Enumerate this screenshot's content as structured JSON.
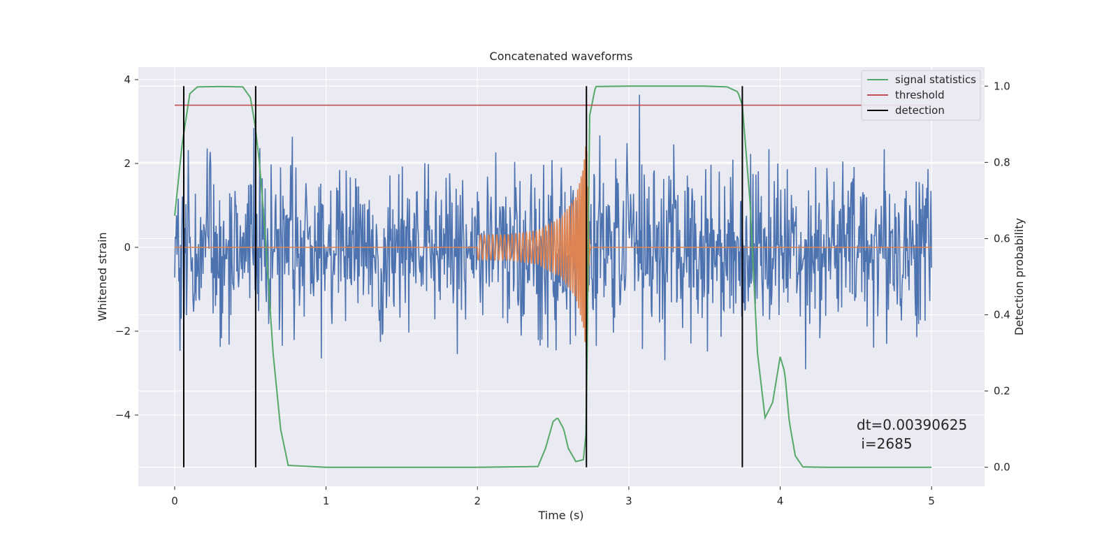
{
  "chart_data": {
    "type": "line",
    "title": "Concatenated waveforms",
    "xlabel": "Time (s)",
    "ylabel_left": "Whitened strain",
    "ylabel_right": "Detection probability",
    "xlim": [
      -0.24,
      5.35
    ],
    "ylim_left": [
      -5.7,
      4.3
    ],
    "ylim_right": [
      -0.05,
      1.05
    ],
    "x_ticks": [
      0,
      1,
      2,
      3,
      4,
      5
    ],
    "y_ticks_left": [
      4,
      2,
      0,
      -2,
      -4
    ],
    "y_ticks_right": [
      1.0,
      0.8,
      0.6,
      0.4,
      0.2,
      0.0
    ],
    "y_tick_labels_left": [
      "4",
      "2",
      "0",
      "−2",
      "−4"
    ],
    "y_tick_labels_right": [
      "1.0",
      "0.8",
      "0.6",
      "0.4",
      "0.2",
      "0.0"
    ],
    "grid": true,
    "legend_position": "top-right",
    "series": [
      {
        "name": "strain",
        "axis": "left",
        "kind": "noise",
        "x_range": [
          0,
          5
        ],
        "approx_amplitude": 1.1,
        "approx_envelope": [
          -3.5,
          3.8
        ],
        "color": "#4c72b0"
      },
      {
        "name": "injected signal",
        "axis": "left",
        "kind": "chirp",
        "x": [
          0,
          2.0,
          2.2,
          2.4,
          2.55,
          2.65,
          2.7,
          2.72,
          2.74,
          5.0
        ],
        "amplitude": [
          0,
          0.3,
          0.3,
          0.4,
          0.7,
          1.2,
          1.9,
          2.6,
          0.2,
          0
        ],
        "color": "#dd8452"
      },
      {
        "name": "signal statistics",
        "axis": "right",
        "x": [
          0,
          0.05,
          0.1,
          0.15,
          0.3,
          0.45,
          0.5,
          0.53,
          0.56,
          0.6,
          0.65,
          0.7,
          0.75,
          1.0,
          2.0,
          2.4,
          2.45,
          2.5,
          2.53,
          2.57,
          2.6,
          2.65,
          2.7,
          2.72,
          2.74,
          2.78,
          3.0,
          3.5,
          3.65,
          3.72,
          3.75,
          3.8,
          3.85,
          3.9,
          3.95,
          4.0,
          4.03,
          4.06,
          4.1,
          4.15,
          4.3,
          5.0
        ],
        "values": [
          0.66,
          0.85,
          0.98,
          0.998,
          0.999,
          0.998,
          0.97,
          0.9,
          0.8,
          0.6,
          0.3,
          0.1,
          0.005,
          0.0,
          0.0,
          0.002,
          0.05,
          0.12,
          0.13,
          0.1,
          0.05,
          0.015,
          0.02,
          0.1,
          0.92,
          0.999,
          1.0,
          1.0,
          0.998,
          0.985,
          0.95,
          0.7,
          0.3,
          0.13,
          0.17,
          0.29,
          0.25,
          0.12,
          0.03,
          0.001,
          0.0,
          0.0
        ],
        "color": "#55a868"
      },
      {
        "name": "threshold",
        "axis": "right",
        "value": 0.95,
        "x_range": [
          0,
          5
        ],
        "color": "#c44e52"
      },
      {
        "name": "detection",
        "axis": "right",
        "kind": "vlines",
        "x": [
          0.06,
          0.535,
          2.72,
          3.75
        ],
        "ymin": 0.0,
        "ymax": 1.0,
        "color": "#000000"
      }
    ],
    "legend": [
      "signal statistics",
      "threshold",
      "detection"
    ],
    "annotation": {
      "line1": "dt=0.00390625",
      "line2": " i=2685"
    }
  }
}
